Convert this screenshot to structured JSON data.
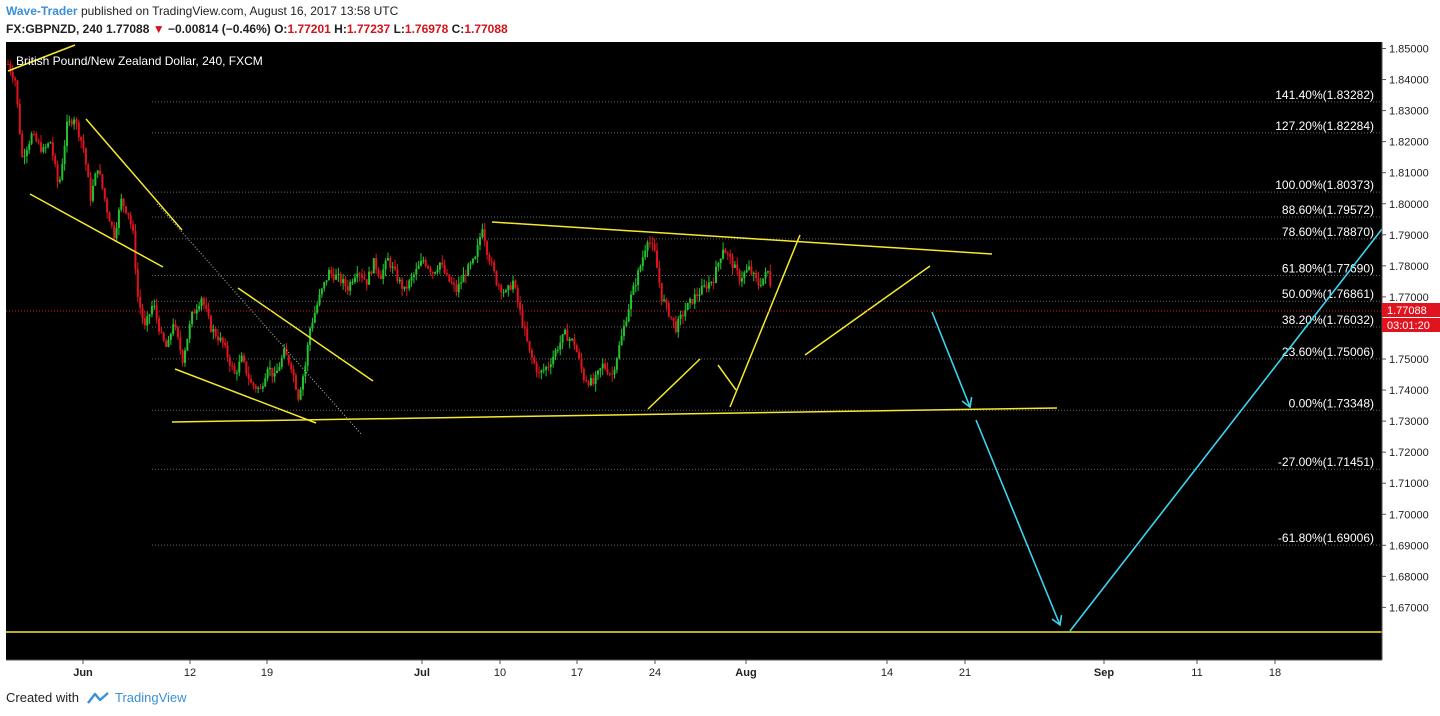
{
  "header": {
    "author": "Wave-Trader",
    "published_text": "published on TradingView.com, August 16, 2017 13:58 UTC",
    "symbol_line": "FX:GBPNZD, 240",
    "last": "1.77088",
    "change": "−0.00814 (−0.46%)",
    "o_label": "O:",
    "o_value": "1.77201",
    "h_label": "H:",
    "h_value": "1.77237",
    "l_label": "L:",
    "l_value": "1.76978",
    "c_label": "C:",
    "c_value": "1.77088"
  },
  "footer": {
    "created_with": "Created with",
    "brand": "TradingView"
  },
  "colors": {
    "background": "#000000",
    "up_candle": "#22c32e",
    "down_candle": "#e0141e",
    "trendline": "#f5e92b",
    "projection": "#3cd4ef",
    "fib_grid": "#6a6a6a",
    "price_badge": "#e0141e"
  },
  "chart_data": {
    "type": "candlestick",
    "title": "British Pound/New Zealand Dollar, 240, FXCM",
    "ylim": [
      1.665,
      1.851
    ],
    "y_ticks": [
      "1.85000",
      "1.84000",
      "1.83000",
      "1.82000",
      "1.81000",
      "1.80000",
      "1.79000",
      "1.78000",
      "1.77000",
      "1.76000",
      "1.75000",
      "1.74000",
      "1.73000",
      "1.72000",
      "1.71000",
      "1.70000",
      "1.69000",
      "1.68000",
      "1.67000"
    ],
    "x_ticks": [
      "Jun",
      "12",
      "19",
      "Jul",
      "10",
      "17",
      "24",
      "Aug",
      "14",
      "21",
      "Sep",
      "11",
      "18"
    ],
    "last_price": "1.77088",
    "countdown": "03:01:20",
    "fib_levels": [
      {
        "label": "141.40%(1.83282)",
        "value": 1.83282
      },
      {
        "label": "127.20%(1.82284)",
        "value": 1.82284
      },
      {
        "label": "100.00%(1.80373)",
        "value": 1.80373
      },
      {
        "label": "88.60%(1.79572)",
        "value": 1.79572
      },
      {
        "label": "78.60%(1.78870)",
        "value": 1.7887
      },
      {
        "label": "61.80%(1.77690)",
        "value": 1.7769
      },
      {
        "label": "50.00%(1.76861)",
        "value": 1.76861
      },
      {
        "label": "38.20%(1.76032)",
        "value": 1.76032
      },
      {
        "label": "23.60%(1.75006)",
        "value": 1.75006
      },
      {
        "label": "0.00%(1.73348)",
        "value": 1.73348
      },
      {
        "label": "-27.00%(1.71451)",
        "value": 1.71451
      },
      {
        "label": "-61.80%(1.69006)",
        "value": 1.69006
      }
    ],
    "price_path": [
      [
        0,
        1.845
      ],
      [
        0.6,
        1.84
      ],
      [
        1.2,
        1.815
      ],
      [
        2,
        1.822
      ],
      [
        3,
        1.817
      ],
      [
        3.6,
        1.82
      ],
      [
        4.3,
        1.805
      ],
      [
        5,
        1.825
      ],
      [
        5.6,
        1.828
      ],
      [
        6.4,
        1.818
      ],
      [
        7,
        1.802
      ],
      [
        7.6,
        1.812
      ],
      [
        8.4,
        1.798
      ],
      [
        9,
        1.79
      ],
      [
        9.6,
        1.801
      ],
      [
        10.2,
        1.797
      ],
      [
        10.6,
        1.79
      ],
      [
        11,
        1.77
      ],
      [
        11.6,
        1.76
      ],
      [
        12.3,
        1.768
      ],
      [
        13,
        1.757
      ],
      [
        13.5,
        1.753
      ],
      [
        14,
        1.762
      ],
      [
        14.8,
        1.75
      ],
      [
        15.6,
        1.764
      ],
      [
        16.4,
        1.77
      ],
      [
        17.2,
        1.76
      ],
      [
        18.2,
        1.755
      ],
      [
        19.2,
        1.745
      ],
      [
        19.8,
        1.75
      ],
      [
        20.6,
        1.742
      ],
      [
        21.4,
        1.74
      ],
      [
        22,
        1.748
      ],
      [
        22.6,
        1.744
      ],
      [
        23.4,
        1.752
      ],
      [
        24,
        1.748
      ],
      [
        24.6,
        1.738
      ],
      [
        25.2,
        1.748
      ],
      [
        25.6,
        1.76
      ],
      [
        26.4,
        1.77
      ],
      [
        27.2,
        1.778
      ],
      [
        28,
        1.776
      ],
      [
        28.8,
        1.773
      ],
      [
        29.6,
        1.779
      ],
      [
        30.4,
        1.775
      ],
      [
        31,
        1.781
      ],
      [
        31.6,
        1.777
      ],
      [
        32.2,
        1.782
      ],
      [
        33,
        1.776
      ],
      [
        33.6,
        1.772
      ],
      [
        34.4,
        1.777
      ],
      [
        35.2,
        1.782
      ],
      [
        36,
        1.778
      ],
      [
        36.6,
        1.781
      ],
      [
        37.2,
        1.776
      ],
      [
        38,
        1.772
      ],
      [
        38.8,
        1.778
      ],
      [
        39.6,
        1.782
      ],
      [
        40.2,
        1.793
      ],
      [
        40.6,
        1.785
      ],
      [
        41.4,
        1.775
      ],
      [
        42.2,
        1.771
      ],
      [
        42.8,
        1.775
      ],
      [
        43.4,
        1.765
      ],
      [
        44.2,
        1.752
      ],
      [
        45,
        1.745
      ],
      [
        45.8,
        1.748
      ],
      [
        46.6,
        1.754
      ],
      [
        47.2,
        1.758
      ],
      [
        48,
        1.755
      ],
      [
        48.8,
        1.744
      ],
      [
        49.6,
        1.742
      ],
      [
        50.4,
        1.748
      ],
      [
        51.2,
        1.745
      ],
      [
        52,
        1.757
      ],
      [
        52.8,
        1.77
      ],
      [
        53.6,
        1.78
      ],
      [
        54.2,
        1.789
      ],
      [
        54.8,
        1.784
      ],
      [
        55.4,
        1.77
      ],
      [
        56,
        1.765
      ],
      [
        56.6,
        1.76
      ],
      [
        57.4,
        1.766
      ],
      [
        58.2,
        1.77
      ],
      [
        59,
        1.773
      ],
      [
        59.8,
        1.776
      ],
      [
        60.6,
        1.786
      ],
      [
        61.2,
        1.782
      ],
      [
        62,
        1.776
      ],
      [
        62.8,
        1.779
      ],
      [
        63.6,
        1.774
      ],
      [
        64.4,
        1.778
      ],
      [
        64.8,
        1.771
      ]
    ]
  }
}
